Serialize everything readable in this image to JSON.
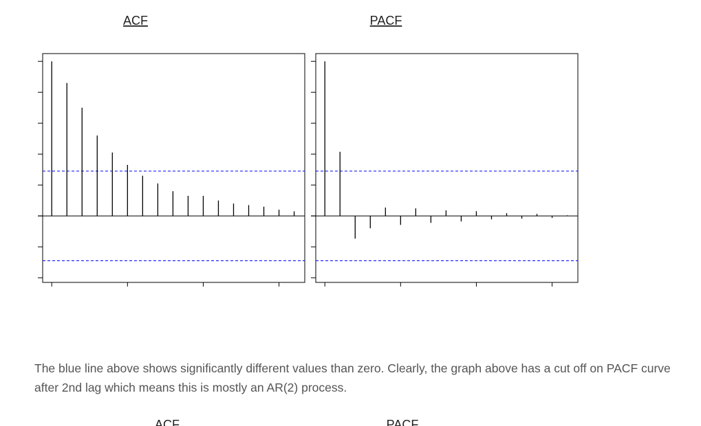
{
  "chart_data": [
    {
      "type": "bar",
      "title": "ACF",
      "x": [
        0,
        1,
        2,
        3,
        4,
        5,
        6,
        7,
        8,
        9,
        10,
        11,
        12,
        13,
        14,
        15,
        16
      ],
      "values": [
        1,
        0.86,
        0.7,
        0.52,
        0.41,
        0.33,
        0.26,
        0.21,
        0.16,
        0.13,
        0.13,
        0.1,
        0.08,
        0.07,
        0.06,
        0.04,
        0.03
      ],
      "color": "#000000",
      "xlim": [
        -0.6,
        16.7
      ],
      "xticks": [
        0,
        5,
        10,
        15
      ],
      "ylim": [
        -0.43,
        1.05
      ],
      "yticks": [
        -0.4,
        -0.2,
        0,
        0.2,
        0.4,
        0.6,
        0.8,
        1
      ],
      "ci_bounds": [
        0.29,
        -0.29
      ],
      "ci_color": "#0000ff"
    },
    {
      "type": "bar",
      "title": "PACF",
      "x": [
        0,
        1,
        2,
        3,
        4,
        5,
        6,
        7,
        8,
        9,
        10,
        11,
        12,
        13,
        14,
        15,
        16
      ],
      "values": [
        1,
        0.415,
        -0.147,
        -0.08,
        0.054,
        -0.058,
        0.049,
        -0.045,
        0.036,
        -0.036,
        0.031,
        -0.022,
        0.018,
        -0.018,
        0.013,
        -0.013,
        0.004
      ],
      "color": "#000000",
      "xlim": [
        -0.6,
        16.7
      ],
      "xticks": [
        0,
        5,
        10,
        15
      ],
      "ylim": [
        -0.43,
        1.05
      ],
      "yticks": [
        -0.4,
        -0.2,
        0,
        0.2,
        0.4,
        0.6,
        0.8,
        1
      ],
      "ci_bounds": [
        0.29,
        -0.29
      ],
      "ci_color": "#0000ff"
    }
  ],
  "paragraph": "The blue line above shows significantly different values than zero. Clearly, the graph above has a cut off on PACF curve after 2nd lag which means this is mostly an AR(2) process.",
  "next_titles": [
    "ACF",
    "PACF"
  ]
}
